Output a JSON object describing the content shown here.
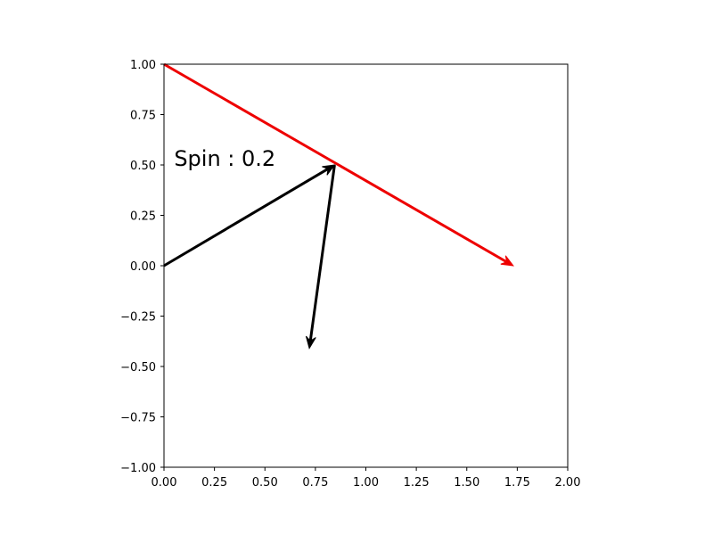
{
  "chart_data": {
    "type": "line",
    "title": "",
    "xlabel": "",
    "ylabel": "",
    "xlim": [
      0,
      2
    ],
    "ylim": [
      -1,
      1
    ],
    "grid": false,
    "x_ticks": [
      0,
      0.25,
      0.5,
      0.75,
      1.0,
      1.25,
      1.5,
      1.75,
      2.0
    ],
    "x_tick_labels": [
      "0.00",
      "0.25",
      "0.50",
      "0.75",
      "1.00",
      "1.25",
      "1.50",
      "1.75",
      "2.00"
    ],
    "y_ticks": [
      -1,
      -0.75,
      -0.5,
      -0.25,
      0,
      0.25,
      0.5,
      0.75,
      1.0
    ],
    "y_tick_labels": [
      "−1.00",
      "−0.75",
      "−0.50",
      "−0.25",
      "0.00",
      "0.25",
      "0.50",
      "0.75",
      "1.00"
    ],
    "annotation": {
      "text": "Spin : 0.2",
      "x": 0.05,
      "y": 0.53
    },
    "series": [
      {
        "from": [
          0,
          1
        ],
        "to": [
          1.73,
          0
        ],
        "color": "#ee0000",
        "arrowhead": true
      },
      {
        "from": [
          0,
          0
        ],
        "to": [
          0.845,
          0.5
        ],
        "color": "#000000",
        "arrowhead": true
      },
      {
        "from": [
          0.845,
          0.5
        ],
        "to": [
          0.72,
          -0.41
        ],
        "color": "#000000",
        "arrowhead": true
      }
    ]
  }
}
